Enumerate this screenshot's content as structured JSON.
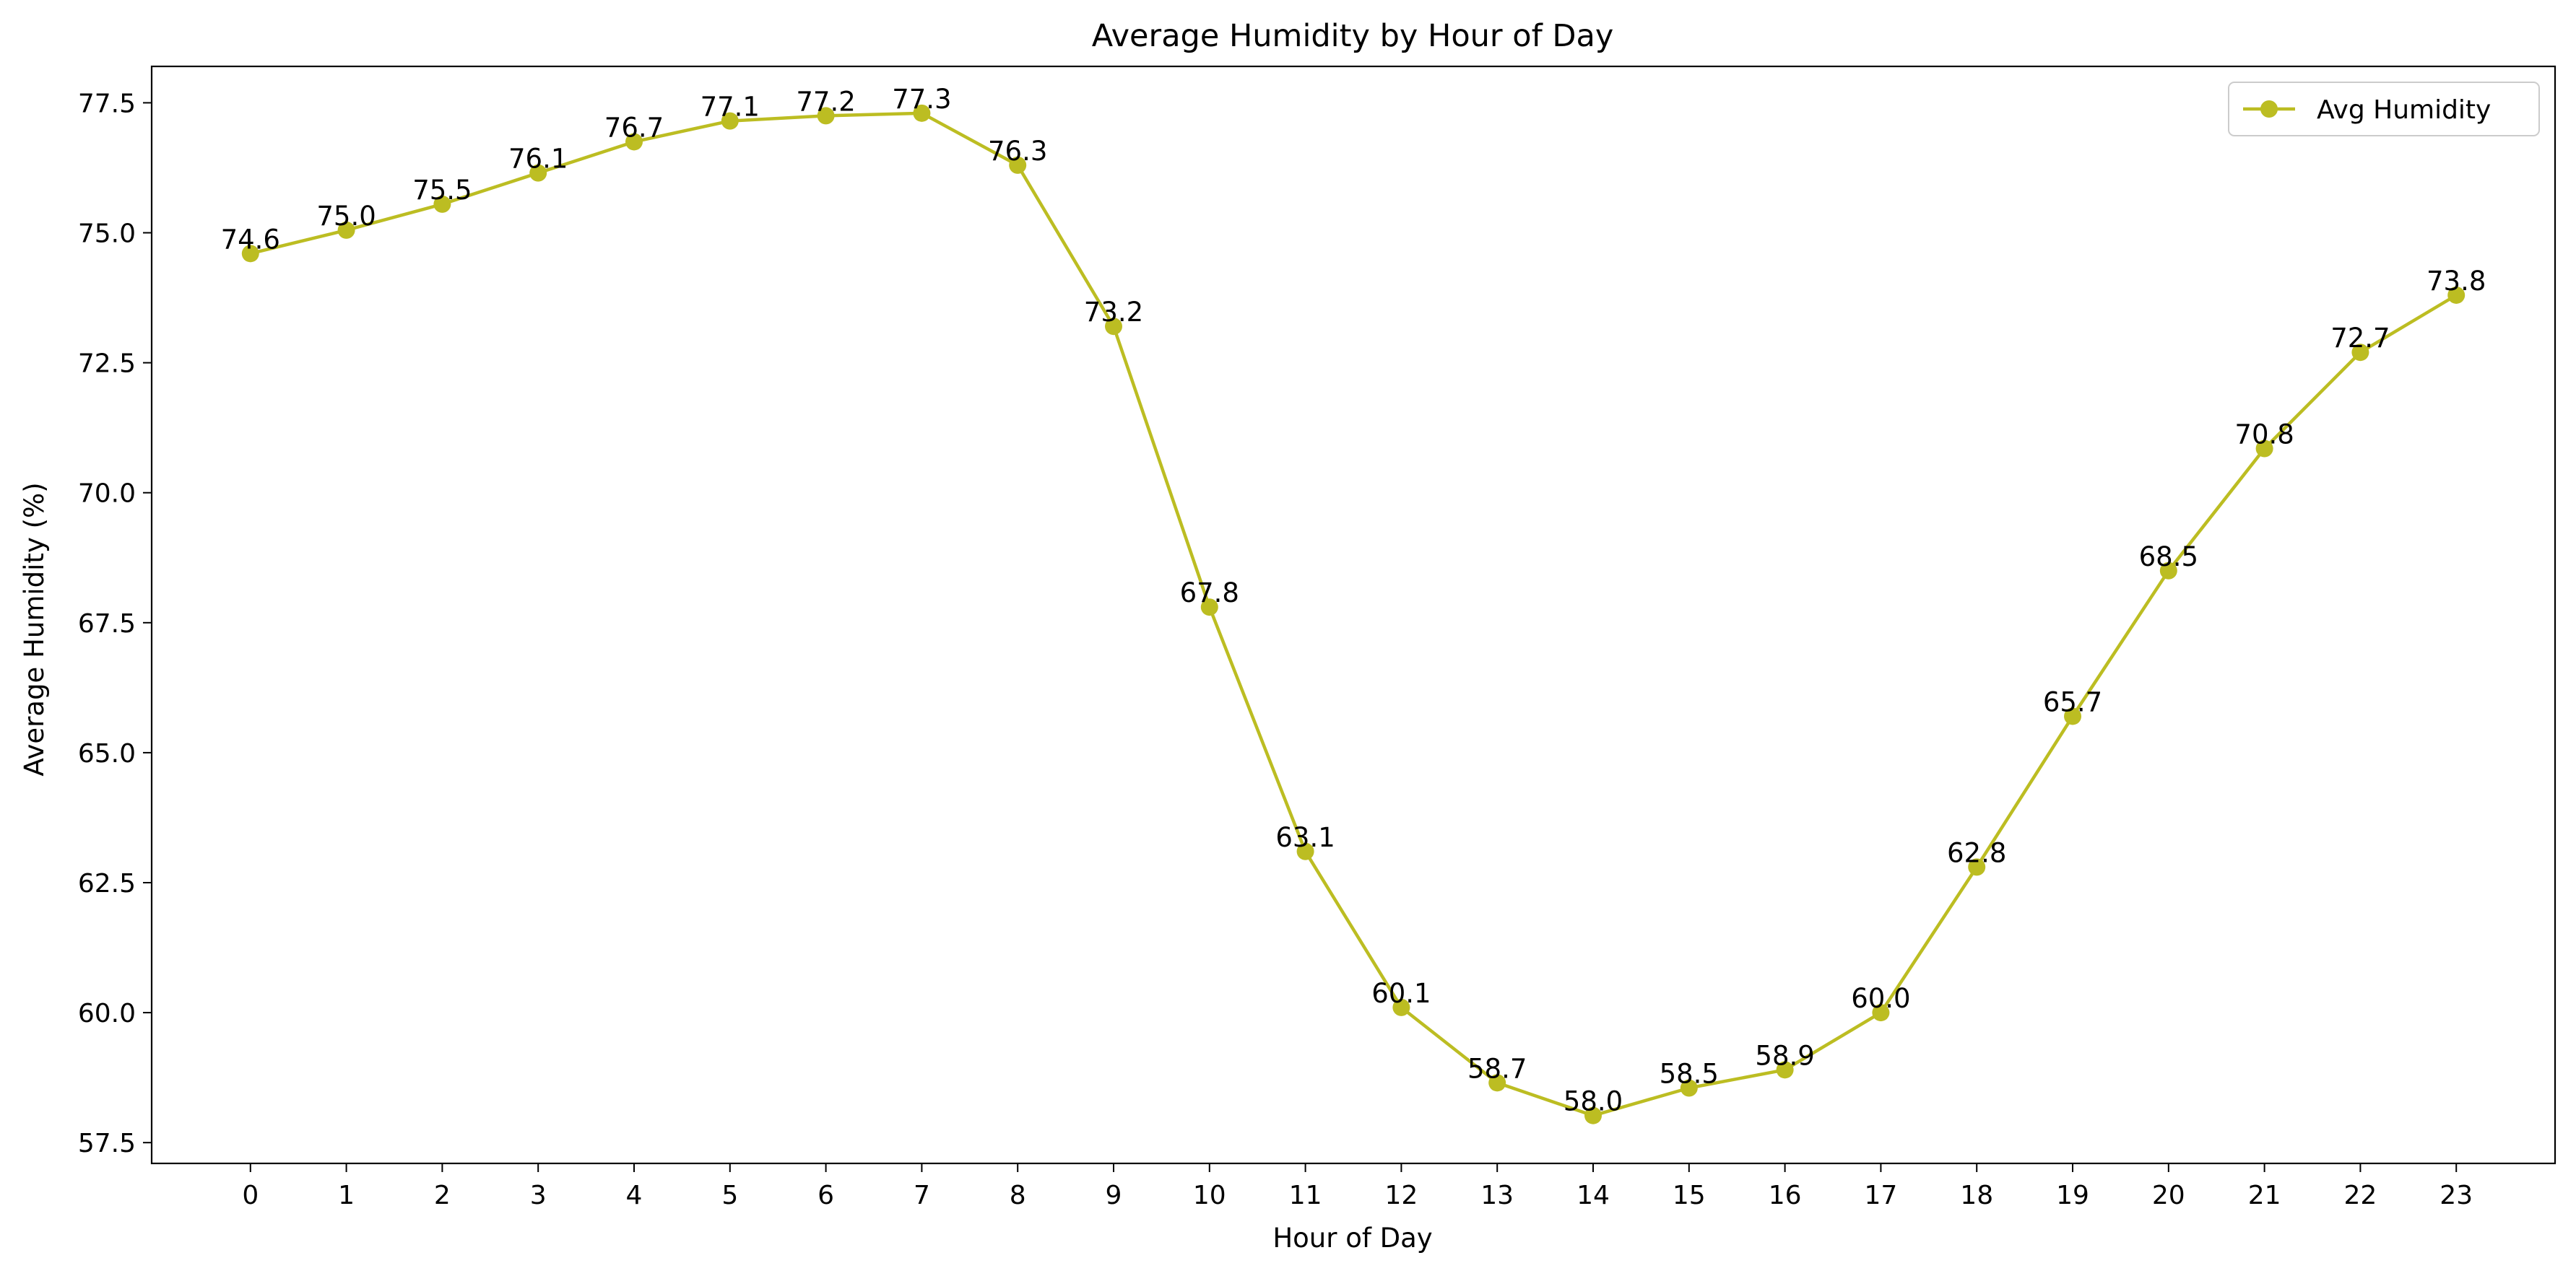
{
  "chart_data": {
    "type": "line",
    "title": "Average Humidity by Hour of Day",
    "xlabel": "Hour of Day",
    "ylabel": "Average Humidity (%)",
    "x": [
      0,
      1,
      2,
      3,
      4,
      5,
      6,
      7,
      8,
      9,
      10,
      11,
      12,
      13,
      14,
      15,
      16,
      17,
      18,
      19,
      20,
      21,
      22,
      23
    ],
    "x_tick_labels": [
      "0",
      "1",
      "2",
      "3",
      "4",
      "5",
      "6",
      "7",
      "8",
      "9",
      "10",
      "11",
      "12",
      "13",
      "14",
      "15",
      "16",
      "17",
      "18",
      "19",
      "20",
      "21",
      "22",
      "23"
    ],
    "series": [
      {
        "name": "Avg Humidity",
        "color": "#bcbd22",
        "marker": "circle",
        "values": [
          74.6,
          75.05,
          75.55,
          76.15,
          76.75,
          77.15,
          77.25,
          77.3,
          76.3,
          73.2,
          67.8,
          63.1,
          60.1,
          58.65,
          58.02,
          58.55,
          58.9,
          60.0,
          62.8,
          65.7,
          68.5,
          70.85,
          72.7,
          73.8
        ],
        "data_labels": [
          "74.6",
          "75.0",
          "75.5",
          "76.1",
          "76.7",
          "77.1",
          "77.2",
          "77.3",
          "76.3",
          "73.2",
          "67.8",
          "63.1",
          "60.1",
          "58.7",
          "58.0",
          "58.5",
          "58.9",
          "60.0",
          "62.8",
          "65.7",
          "68.5",
          "70.8",
          "72.7",
          "73.8"
        ]
      }
    ],
    "xlim": [
      -1.03,
      24.03
    ],
    "ylim": [
      57.1,
      78.2
    ],
    "y_ticks": [
      57.5,
      60.0,
      62.5,
      65.0,
      67.5,
      70.0,
      72.5,
      75.0,
      77.5
    ],
    "y_tick_labels": [
      "57.5",
      "60.0",
      "62.5",
      "65.0",
      "67.5",
      "70.0",
      "72.5",
      "75.0",
      "77.5"
    ],
    "grid": false,
    "legend_position": "top-right"
  }
}
